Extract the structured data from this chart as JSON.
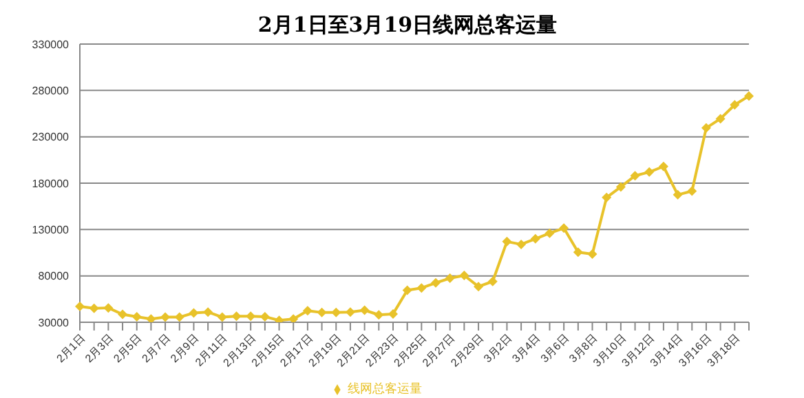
{
  "chart_data": {
    "type": "line",
    "title": "2月1日至3月19日线网总客运量",
    "categories": [
      "2月1日",
      null,
      "2月3日",
      null,
      "2月5日",
      null,
      "2月7日",
      null,
      "2月9日",
      null,
      "2月11日",
      null,
      "2月13日",
      null,
      "2月15日",
      null,
      "2月17日",
      null,
      "2月19日",
      null,
      "2月21日",
      null,
      "2月23日",
      null,
      "2月25日",
      null,
      "2月27日",
      null,
      "2月29日",
      null,
      "3月2日",
      null,
      "3月4日",
      null,
      "3月6日",
      null,
      "3月8日",
      null,
      "3月10日",
      null,
      "3月12日",
      null,
      "3月14日",
      null,
      "3月16日",
      null,
      "3月18日",
      null
    ],
    "series": [
      {
        "name": "线网总客运量",
        "color": "#e8c22a",
        "values": [
          47000,
          45000,
          45500,
          38500,
          36000,
          33500,
          35500,
          35500,
          40000,
          41000,
          35500,
          36500,
          36500,
          36000,
          32000,
          33500,
          42500,
          40500,
          40500,
          41000,
          43000,
          38000,
          39000,
          64500,
          67000,
          72500,
          77500,
          80500,
          68500,
          74000,
          117000,
          114000,
          120000,
          126000,
          131500,
          105500,
          103500,
          164500,
          176000,
          188000,
          192000,
          198000,
          167500,
          171500,
          239500,
          249500,
          264500,
          274000
        ]
      }
    ],
    "ylim": [
      30000,
      330000
    ],
    "yticks": [
      30000,
      80000,
      130000,
      180000,
      230000,
      280000,
      330000
    ],
    "grid": "y",
    "legend": "bottom",
    "marker": "diamond",
    "line_style": "solid"
  }
}
